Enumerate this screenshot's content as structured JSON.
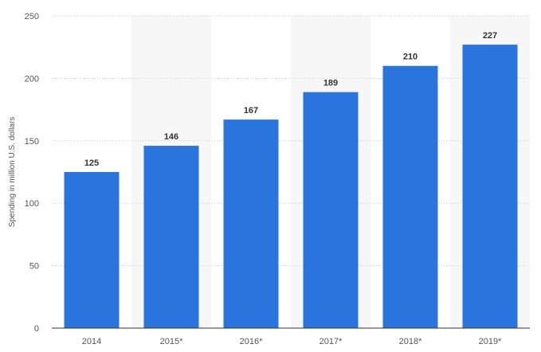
{
  "chart_data": {
    "type": "bar",
    "categories": [
      "2014",
      "2015*",
      "2016*",
      "2017*",
      "2018*",
      "2019*"
    ],
    "values": [
      125,
      146,
      167,
      189,
      210,
      227
    ],
    "data_labels": [
      "125",
      "146",
      "167",
      "189",
      "210",
      "227"
    ],
    "title": "",
    "xlabel": "",
    "ylabel": "Spending in million U.S. dollars",
    "ylim": [
      0,
      250
    ],
    "yticks": [
      0,
      50,
      100,
      150,
      200,
      250
    ],
    "ytick_labels": [
      "0",
      "50",
      "100",
      "150",
      "200",
      "250"
    ],
    "grid": true,
    "alternating_column_shading": true,
    "colors": {
      "bar": "#2a74dd",
      "shade": "#f7f7f7",
      "grid": "#cccccc",
      "axis": "#333333"
    }
  }
}
